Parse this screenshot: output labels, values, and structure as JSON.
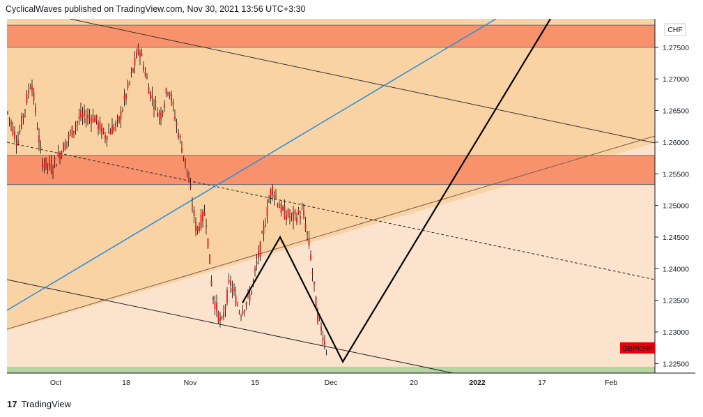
{
  "header": {
    "text": "CyclicalWaves published on TradingView.com, Nov 30, 2021 13:56 UTC+3:30"
  },
  "footer": {
    "logo_text": "17",
    "brand": "TradingView"
  },
  "chart_data": {
    "type": "candlestick",
    "symbol": "GBPCHF",
    "currency": "CHF",
    "ylim": [
      1.2235,
      1.2795
    ],
    "y_ticks": [
      "1.27500",
      "1.27000",
      "1.26500",
      "1.26000",
      "1.25500",
      "1.25000",
      "1.24500",
      "1.24000",
      "1.23500",
      "1.23000",
      "1.22500"
    ],
    "x_ticks": [
      "Oct",
      "18",
      "Nov",
      "15",
      "Dec",
      "20",
      "2022",
      "17",
      "Feb"
    ],
    "colors": {
      "candle": "#e31a1c",
      "wick": "#000000",
      "resistance_zone": "#f7926d",
      "range_fill": "#fad3a4",
      "light_fill": "#fbe3cd",
      "green_zone": "#b4d6a2",
      "trendline_blue": "#2b8fe0",
      "label_bg": "#e8000b"
    },
    "zones": [
      {
        "name": "upper-resistance",
        "from": 1.275,
        "to": 1.2785
      },
      {
        "name": "mid-resistance",
        "from": 1.2533,
        "to": 1.2579
      },
      {
        "name": "support",
        "from": 1.2235,
        "to": 1.2245
      }
    ],
    "wave_projection": [
      {
        "date": "Nov 17",
        "price": 1.2346
      },
      {
        "date": "Nov 19",
        "price": 1.245
      },
      {
        "date": "Dec 2",
        "price": 1.2253
      },
      {
        "date": "Jan 24",
        "price": 1.2795
      }
    ],
    "last_price_label": "GBPCHF"
  }
}
